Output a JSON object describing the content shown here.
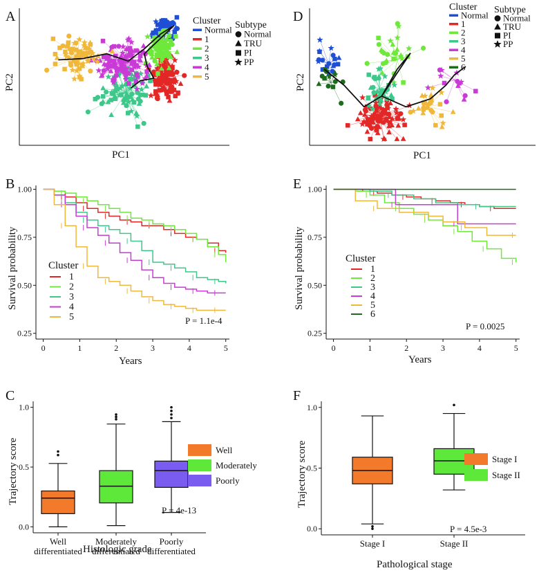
{
  "chart_data": [
    {
      "panel": "A",
      "type": "scatter",
      "xlabel": "PC1",
      "ylabel": "PC2",
      "legend_cluster_title": "Cluster",
      "legend_subtype_title": "Subtype",
      "clusters": [
        {
          "name": "Normal",
          "color": "#1f4fd6",
          "center": [
            1.9,
            3.45
          ],
          "sx": 0.22,
          "sy": 0.22,
          "n": 60
        },
        {
          "name": "1",
          "color": "#e32626",
          "center": [
            2.05,
            1.45
          ],
          "sx": 0.28,
          "sy": 0.42,
          "n": 110
        },
        {
          "name": "2",
          "color": "#6ee83a",
          "center": [
            1.85,
            2.55
          ],
          "sx": 0.22,
          "sy": 0.32,
          "n": 70
        },
        {
          "name": "3",
          "color": "#3ec78a",
          "center": [
            0.5,
            0.8
          ],
          "sx": 0.55,
          "sy": 0.55,
          "n": 80
        },
        {
          "name": "4",
          "color": "#c93ad6",
          "center": [
            0.5,
            2.1
          ],
          "sx": 0.55,
          "sy": 0.4,
          "n": 110
        },
        {
          "name": "5",
          "color": "#f0b83a",
          "center": [
            -1.3,
            2.25
          ],
          "sx": 0.4,
          "sy": 0.45,
          "n": 70
        }
      ],
      "subtypes": [
        {
          "name": "Normal",
          "symbol": "circle"
        },
        {
          "name": "TRU",
          "symbol": "triangle"
        },
        {
          "name": "PI",
          "symbol": "square"
        },
        {
          "name": "PP",
          "symbol": "star"
        }
      ],
      "trajectory": [
        [
          -2.0,
          2.15
        ],
        [
          -1.1,
          2.2
        ],
        [
          -0.2,
          2.4
        ],
        [
          0.6,
          2.1
        ],
        [
          1.2,
          2.6
        ],
        [
          1.8,
          3.2
        ],
        [
          2.3,
          3.55
        ],
        [
          1.2,
          2.4
        ],
        [
          1.3,
          1.9
        ],
        [
          1.55,
          1.4
        ],
        [
          1.05,
          1.3
        ],
        [
          0.7,
          1.0
        ]
      ],
      "xlim": [
        -3.4,
        3.8
      ],
      "ylim": [
        -1.2,
        4.2
      ]
    },
    {
      "panel": "D",
      "type": "scatter",
      "xlabel": "PC1",
      "ylabel": "PC2",
      "legend_cluster_title": "Cluster",
      "legend_subtype_title": "Subtype",
      "clusters": [
        {
          "name": "Normal",
          "color": "#1f4fd6",
          "center": [
            -2.2,
            2.6
          ],
          "sx": 0.3,
          "sy": 0.3,
          "n": 18
        },
        {
          "name": "1",
          "color": "#e32626",
          "center": [
            0.1,
            0.6
          ],
          "sx": 0.55,
          "sy": 0.4,
          "n": 90
        },
        {
          "name": "2",
          "color": "#6ee83a",
          "center": [
            0.9,
            2.75
          ],
          "sx": 0.45,
          "sy": 0.5,
          "n": 30
        },
        {
          "name": "3",
          "color": "#3ec78a",
          "center": [
            0.1,
            1.7
          ],
          "sx": 0.35,
          "sy": 0.35,
          "n": 35
        },
        {
          "name": "4",
          "color": "#c93ad6",
          "center": [
            3.5,
            2.0
          ],
          "sx": 0.45,
          "sy": 0.45,
          "n": 14
        },
        {
          "name": "5",
          "color": "#f0b83a",
          "center": [
            2.3,
            1.0
          ],
          "sx": 0.35,
          "sy": 0.3,
          "n": 28
        },
        {
          "name": "6",
          "color": "#1e6b1e",
          "center": [
            -2.1,
            1.9
          ],
          "sx": 0.35,
          "sy": 0.3,
          "n": 14
        }
      ],
      "subtypes": [
        {
          "name": "Normal",
          "symbol": "circle"
        },
        {
          "name": "TRU",
          "symbol": "triangle"
        },
        {
          "name": "PI",
          "symbol": "square"
        },
        {
          "name": "PP",
          "symbol": "star"
        }
      ],
      "trajectory": [
        [
          -2.4,
          2.4
        ],
        [
          -1.5,
          1.8
        ],
        [
          -0.6,
          1.0
        ],
        [
          0.2,
          1.4
        ],
        [
          0.9,
          2.4
        ],
        [
          1.5,
          3.0
        ],
        [
          0.2,
          1.4
        ],
        [
          1.3,
          1.0
        ],
        [
          2.4,
          1.3
        ],
        [
          3.1,
          1.8
        ],
        [
          3.5,
          2.2
        ],
        [
          4.0,
          2.5
        ]
      ],
      "xlim": [
        -3.0,
        7.0
      ],
      "ylim": [
        -0.3,
        4.2
      ]
    },
    {
      "panel": "B",
      "type": "line",
      "subtype": "kaplan-meier",
      "xlabel": "Years",
      "ylabel": "Survival probability",
      "xticks": [
        0,
        1,
        2,
        3,
        4,
        5
      ],
      "yticks": [
        0.25,
        0.5,
        0.75,
        1.0
      ],
      "ytick_labels": [
        "0.25",
        "0.50",
        "0.75",
        "1.00"
      ],
      "xlim": [
        -0.2,
        5.1
      ],
      "ylim": [
        0.22,
        1.02
      ],
      "legend_title": "Cluster",
      "pvalue": "P = 1.1e-4",
      "series": [
        {
          "name": "1",
          "color": "#e32626",
          "x": [
            0,
            0.3,
            0.6,
            0.9,
            1.2,
            1.5,
            1.8,
            2.1,
            2.4,
            2.7,
            3.0,
            3.3,
            3.6,
            3.9,
            4.2,
            4.5,
            4.8,
            5.0
          ],
          "y": [
            1.0,
            0.99,
            0.96,
            0.93,
            0.9,
            0.88,
            0.86,
            0.84,
            0.83,
            0.81,
            0.81,
            0.79,
            0.77,
            0.75,
            0.74,
            0.72,
            0.68,
            0.67
          ]
        },
        {
          "name": "2",
          "color": "#6ee83a",
          "x": [
            0,
            0.3,
            0.6,
            0.9,
            1.2,
            1.5,
            1.8,
            2.1,
            2.4,
            2.7,
            3.0,
            3.3,
            3.6,
            3.9,
            4.2,
            4.5,
            4.8,
            5.0
          ],
          "y": [
            1.0,
            0.99,
            0.98,
            0.96,
            0.94,
            0.92,
            0.9,
            0.88,
            0.85,
            0.84,
            0.82,
            0.81,
            0.79,
            0.77,
            0.74,
            0.7,
            0.66,
            0.62
          ]
        },
        {
          "name": "3",
          "color": "#3ec78a",
          "x": [
            0,
            0.3,
            0.6,
            0.9,
            1.2,
            1.5,
            1.8,
            2.1,
            2.4,
            2.7,
            3.0,
            3.3,
            3.6,
            3.9,
            4.2,
            4.5,
            4.8,
            5.0
          ],
          "y": [
            1.0,
            0.97,
            0.93,
            0.88,
            0.84,
            0.81,
            0.79,
            0.77,
            0.73,
            0.68,
            0.62,
            0.61,
            0.59,
            0.57,
            0.54,
            0.53,
            0.52,
            0.51
          ]
        },
        {
          "name": "4",
          "color": "#c93ad6",
          "x": [
            0,
            0.3,
            0.6,
            0.9,
            1.2,
            1.5,
            1.8,
            2.1,
            2.4,
            2.7,
            3.0,
            3.3,
            3.6,
            3.9,
            4.2,
            4.5,
            4.8,
            5.0
          ],
          "y": [
            1.0,
            0.97,
            0.92,
            0.86,
            0.8,
            0.76,
            0.72,
            0.67,
            0.63,
            0.58,
            0.54,
            0.51,
            0.49,
            0.48,
            0.47,
            0.46,
            0.46,
            0.46
          ]
        },
        {
          "name": "5",
          "color": "#f0b83a",
          "x": [
            0,
            0.3,
            0.6,
            0.9,
            1.2,
            1.5,
            1.8,
            2.1,
            2.4,
            2.7,
            3.0,
            3.3,
            3.6,
            3.9,
            4.2,
            4.5,
            4.8,
            5.0
          ],
          "y": [
            1.0,
            0.92,
            0.81,
            0.7,
            0.6,
            0.54,
            0.52,
            0.5,
            0.47,
            0.44,
            0.42,
            0.4,
            0.39,
            0.38,
            0.37,
            0.37,
            0.37,
            0.37
          ]
        }
      ]
    },
    {
      "panel": "E",
      "type": "line",
      "subtype": "kaplan-meier",
      "xlabel": "Years",
      "ylabel": "Survival probability",
      "xticks": [
        0,
        1,
        2,
        3,
        4,
        5
      ],
      "yticks": [
        0.25,
        0.5,
        0.75,
        1.0
      ],
      "ytick_labels": [
        "0.25",
        "0.50",
        "0.75",
        "1.00"
      ],
      "xlim": [
        -0.2,
        5.1
      ],
      "ylim": [
        0.22,
        1.02
      ],
      "legend_title": "Cluster",
      "pvalue": "P = 0.0025",
      "series": [
        {
          "name": "1",
          "color": "#e32626",
          "x": [
            0,
            0.8,
            1.2,
            1.6,
            2.0,
            2.4,
            2.8,
            3.2,
            3.6,
            4.0,
            4.4,
            5.0
          ],
          "y": [
            1.0,
            0.99,
            0.98,
            0.97,
            0.96,
            0.95,
            0.94,
            0.93,
            0.92,
            0.91,
            0.9,
            0.9
          ]
        },
        {
          "name": "2",
          "color": "#6ee83a",
          "x": [
            0,
            0.6,
            1.0,
            1.4,
            1.8,
            2.2,
            2.6,
            3.0,
            3.4,
            3.8,
            4.2,
            4.6,
            5.0
          ],
          "y": [
            1.0,
            0.99,
            0.97,
            0.93,
            0.9,
            0.87,
            0.84,
            0.81,
            0.78,
            0.73,
            0.69,
            0.64,
            0.62
          ]
        },
        {
          "name": "3",
          "color": "#3ec78a",
          "x": [
            0,
            1.0,
            1.6,
            2.2,
            2.8,
            3.4,
            4.0,
            5.0
          ],
          "y": [
            1.0,
            0.99,
            0.97,
            0.95,
            0.93,
            0.92,
            0.91,
            0.91
          ]
        },
        {
          "name": "4",
          "color": "#c93ad6",
          "x": [
            0,
            1.6,
            1.7,
            3.3,
            3.4,
            5.0
          ],
          "y": [
            1.0,
            1.0,
            0.92,
            0.92,
            0.82,
            0.82
          ]
        },
        {
          "name": "5",
          "color": "#f0b83a",
          "x": [
            0,
            0.6,
            1.2,
            1.8,
            2.6,
            3.0,
            3.6,
            4.2,
            5.0
          ],
          "y": [
            1.0,
            0.94,
            0.9,
            0.88,
            0.86,
            0.83,
            0.8,
            0.76,
            0.76
          ]
        },
        {
          "name": "6",
          "color": "#1e6b1e",
          "x": [
            0,
            5.0
          ],
          "y": [
            1.0,
            1.0
          ]
        }
      ]
    },
    {
      "panel": "C",
      "type": "box",
      "xlabel": "Histologic grade",
      "ylabel": "Trajectory score",
      "yticks": [
        0.0,
        0.5,
        1.0
      ],
      "ytick_labels": [
        "0.0",
        "0.5",
        "1.0"
      ],
      "ylim": [
        -0.05,
        1.05
      ],
      "categories": [
        "Well\ndifferentiated",
        "Moderately\ndifferentiated",
        "Poorly\ndifferentiated"
      ],
      "legend": [
        "Well",
        "Moderately",
        "Poorly"
      ],
      "pvalue": "P = 4e-13",
      "boxes": [
        {
          "color": "#f27a2a",
          "whisker_low": 0.0,
          "q1": 0.11,
          "median": 0.24,
          "q3": 0.3,
          "whisker_high": 0.53,
          "outliers": [
            0.6,
            0.63
          ]
        },
        {
          "color": "#5ee83a",
          "whisker_low": 0.01,
          "q1": 0.2,
          "median": 0.34,
          "q3": 0.47,
          "whisker_high": 0.86,
          "outliers": [
            0.9,
            0.92,
            0.94
          ]
        },
        {
          "color": "#7a5cf0",
          "whisker_low": 0.12,
          "q1": 0.33,
          "median": 0.47,
          "q3": 0.55,
          "whisker_high": 0.88,
          "outliers": [
            0.91,
            0.94,
            0.97,
            1.0
          ]
        }
      ]
    },
    {
      "panel": "F",
      "type": "box",
      "xlabel": "Pathological stage",
      "ylabel": "Trajectory score",
      "yticks": [
        0.0,
        0.5,
        1.0
      ],
      "ytick_labels": [
        "0.0",
        "0.5",
        "1.0"
      ],
      "ylim": [
        -0.05,
        1.05
      ],
      "categories": [
        "Stage I",
        "Stage II"
      ],
      "legend": [
        "Stage I",
        "Stage II"
      ],
      "pvalue": "P = 4.5e-3",
      "boxes": [
        {
          "color": "#f27a2a",
          "whisker_low": 0.04,
          "q1": 0.37,
          "median": 0.48,
          "q3": 0.59,
          "whisker_high": 0.93,
          "outliers": [
            0.0,
            0.02
          ]
        },
        {
          "color": "#5ee83a",
          "whisker_low": 0.32,
          "q1": 0.45,
          "median": 0.56,
          "q3": 0.66,
          "whisker_high": 0.95,
          "outliers": [
            1.02
          ]
        }
      ]
    }
  ]
}
